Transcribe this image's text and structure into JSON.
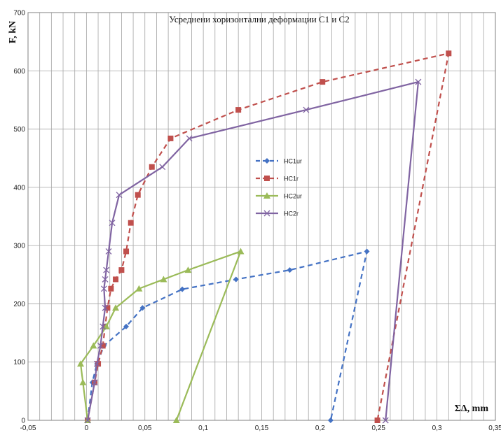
{
  "chart_data": {
    "type": "line",
    "title": "Усреднени хоризонтални деформации С1 и С2",
    "xlabel": "ΣΔ, mm",
    "ylabel": "F, kN",
    "xlim": [
      -0.05,
      0.35
    ],
    "ylim": [
      0,
      700
    ],
    "grid": true,
    "legend_placement": "center",
    "x_ticks": [
      "-0,05",
      "0",
      "0,05",
      "0,1",
      "0,15",
      "0,2",
      "0,25",
      "0,3",
      "0,35"
    ],
    "x_tick_values": [
      -0.05,
      0,
      0.05,
      0.1,
      0.15,
      0.2,
      0.25,
      0.3,
      0.35
    ],
    "y_ticks": [
      "0",
      "100",
      "200",
      "300",
      "400",
      "500",
      "600",
      "700"
    ],
    "y_tick_values": [
      0,
      100,
      200,
      300,
      400,
      500,
      600,
      700
    ],
    "series": [
      {
        "name": "HC1ur",
        "color": "#4472c4",
        "dash": "dashed",
        "marker": "diamond",
        "points": [
          [
            0.001,
            0
          ],
          [
            0.005,
            65
          ],
          [
            0.009,
            97
          ],
          [
            0.015,
            128
          ],
          [
            0.034,
            161
          ],
          [
            0.048,
            193
          ],
          [
            0.082,
            225
          ],
          [
            0.128,
            242
          ],
          [
            0.174,
            258
          ],
          [
            0.24,
            290
          ],
          [
            0.209,
            0
          ]
        ]
      },
      {
        "name": "HC1r",
        "color": "#c0504d",
        "dash": "dashed",
        "marker": "square",
        "points": [
          [
            0.001,
            0
          ],
          [
            0.007,
            65
          ],
          [
            0.01,
            97
          ],
          [
            0.014,
            128
          ],
          [
            0.016,
            161
          ],
          [
            0.018,
            193
          ],
          [
            0.021,
            226
          ],
          [
            0.025,
            242
          ],
          [
            0.03,
            258
          ],
          [
            0.034,
            290
          ],
          [
            0.038,
            339
          ],
          [
            0.044,
            387
          ],
          [
            0.056,
            435
          ],
          [
            0.072,
            484
          ],
          [
            0.13,
            533
          ],
          [
            0.202,
            581
          ],
          [
            0.31,
            630
          ],
          [
            0.249,
            0
          ]
        ]
      },
      {
        "name": "HC2ur",
        "color": "#9bbb59",
        "dash": "solid",
        "marker": "triangle",
        "points": [
          [
            0.001,
            0
          ],
          [
            -0.003,
            65
          ],
          [
            -0.005,
            97
          ],
          [
            0.006,
            128
          ],
          [
            0.017,
            161
          ],
          [
            0.025,
            193
          ],
          [
            0.045,
            226
          ],
          [
            0.066,
            242
          ],
          [
            0.087,
            258
          ],
          [
            0.132,
            290
          ],
          [
            0.077,
            0
          ]
        ]
      },
      {
        "name": "HC2r",
        "color": "#8064a2",
        "dash": "solid",
        "marker": "x",
        "points": [
          [
            0.001,
            0
          ],
          [
            0.007,
            65
          ],
          [
            0.009,
            97
          ],
          [
            0.012,
            128
          ],
          [
            0.014,
            161
          ],
          [
            0.016,
            193
          ],
          [
            0.015,
            226
          ],
          [
            0.016,
            242
          ],
          [
            0.017,
            258
          ],
          [
            0.019,
            290
          ],
          [
            0.022,
            339
          ],
          [
            0.028,
            387
          ],
          [
            0.065,
            435
          ],
          [
            0.088,
            484
          ],
          [
            0.188,
            533
          ],
          [
            0.284,
            581
          ],
          [
            0.256,
            0
          ]
        ]
      }
    ]
  }
}
